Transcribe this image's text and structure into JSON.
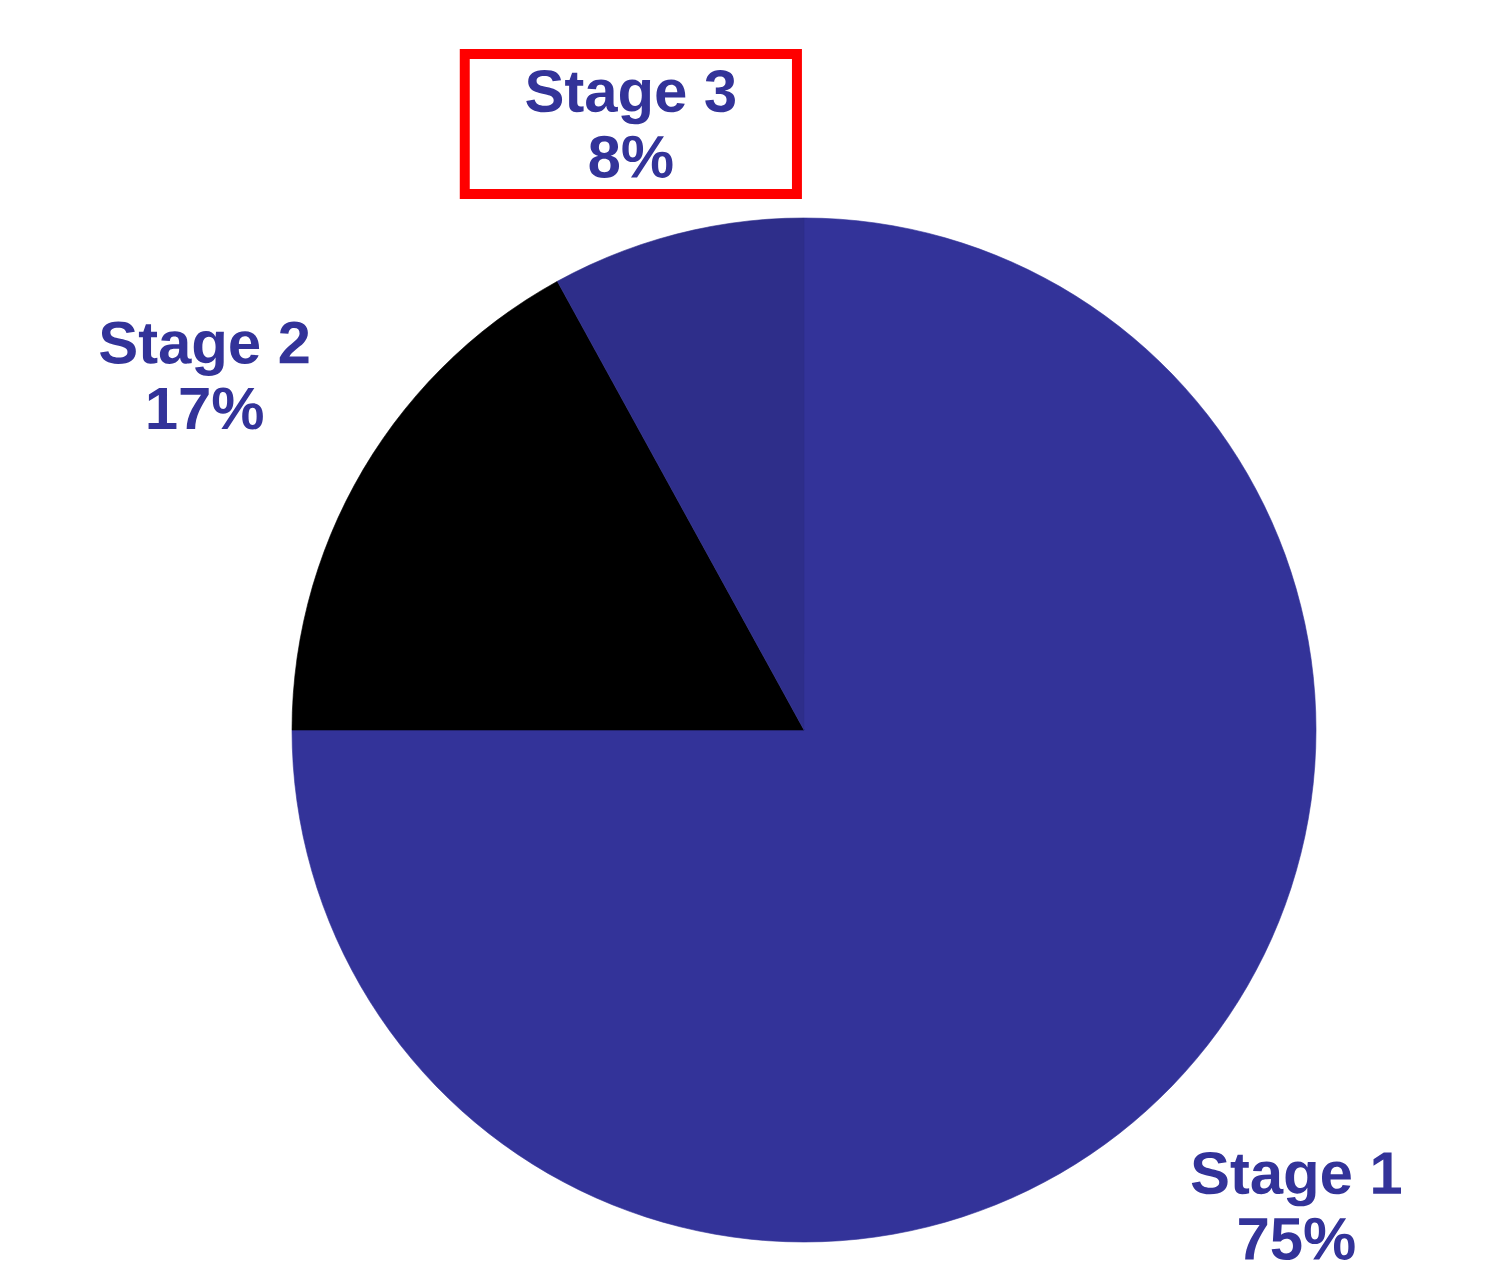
{
  "chart_data": {
    "type": "pie",
    "categories": [
      "Stage 1",
      "Stage 2",
      "Stage 3"
    ],
    "values": [
      75,
      17,
      8
    ],
    "colors": [
      "#333399",
      "#000000",
      "#2e2e8a"
    ],
    "value_labels": [
      "75%",
      "17%",
      "8%"
    ]
  }
}
